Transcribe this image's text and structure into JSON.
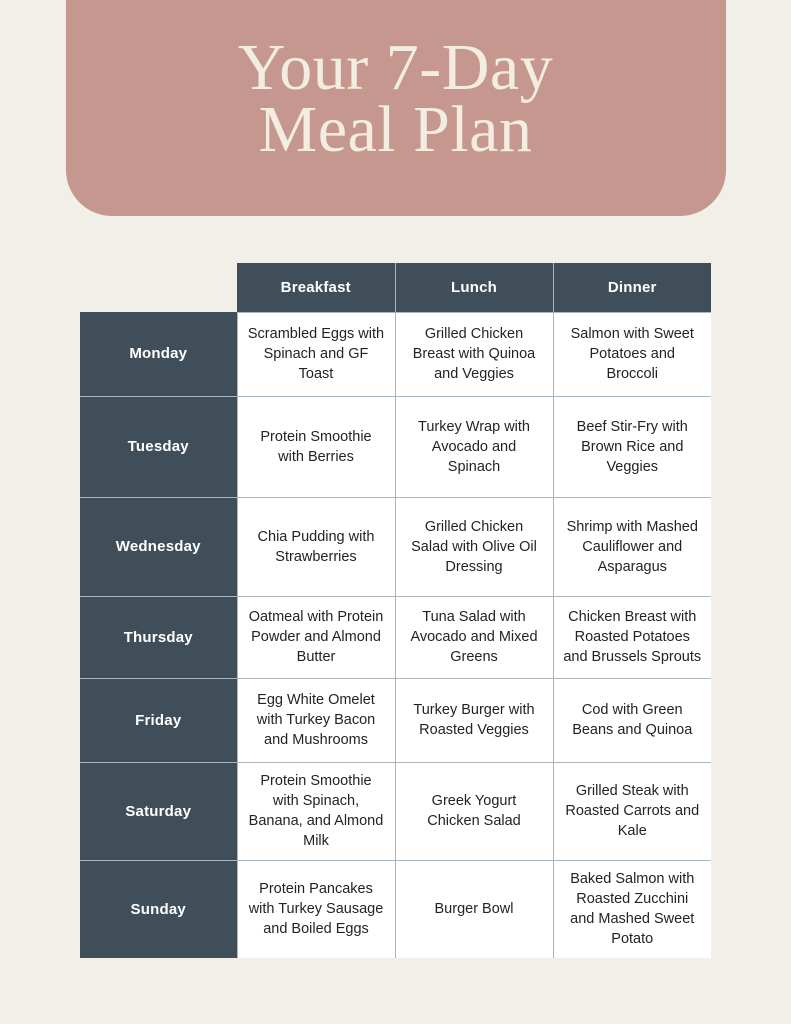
{
  "banner": {
    "title_line1": "Your 7-Day",
    "title_line2": "Meal Plan",
    "background": "#c6978f",
    "text_color": "#f2ece1"
  },
  "table": {
    "header_bg": "#404e5a",
    "border_color": "#a9b6c0",
    "columns": [
      "Breakfast",
      "Lunch",
      "Dinner"
    ],
    "rows": [
      {
        "day": "Monday",
        "meals": [
          "Scrambled Eggs with Spinach and GF Toast",
          "Grilled Chicken Breast with Quinoa and Veggies",
          "Salmon with Sweet Potatoes and Broccoli"
        ]
      },
      {
        "day": "Tuesday",
        "meals": [
          "Protein Smoothie with Berries",
          "Turkey Wrap with Avocado and Spinach",
          "Beef Stir-Fry with Brown Rice and Veggies"
        ]
      },
      {
        "day": "Wednesday",
        "meals": [
          "Chia Pudding with Strawberries",
          "Grilled Chicken Salad with Olive Oil Dressing",
          "Shrimp with Mashed Cauliflower and Asparagus"
        ]
      },
      {
        "day": "Thursday",
        "meals": [
          "Oatmeal with Protein Powder and Almond Butter",
          "Tuna Salad with Avocado and Mixed Greens",
          "Chicken Breast with Roasted Potatoes and Brussels Sprouts"
        ]
      },
      {
        "day": "Friday",
        "meals": [
          "Egg White Omelet with Turkey Bacon and Mushrooms",
          "Turkey Burger with Roasted Veggies",
          "Cod with Green Beans and Quinoa"
        ]
      },
      {
        "day": "Saturday",
        "meals": [
          "Protein Smoothie with Spinach, Banana, and Almond Milk",
          "Greek Yogurt Chicken Salad",
          "Grilled Steak with Roasted Carrots and Kale"
        ]
      },
      {
        "day": "Sunday",
        "meals": [
          "Protein Pancakes with Turkey Sausage and Boiled Eggs",
          "Burger Bowl",
          "Baked Salmon with Roasted Zucchini and Mashed Sweet Potato"
        ]
      }
    ]
  }
}
